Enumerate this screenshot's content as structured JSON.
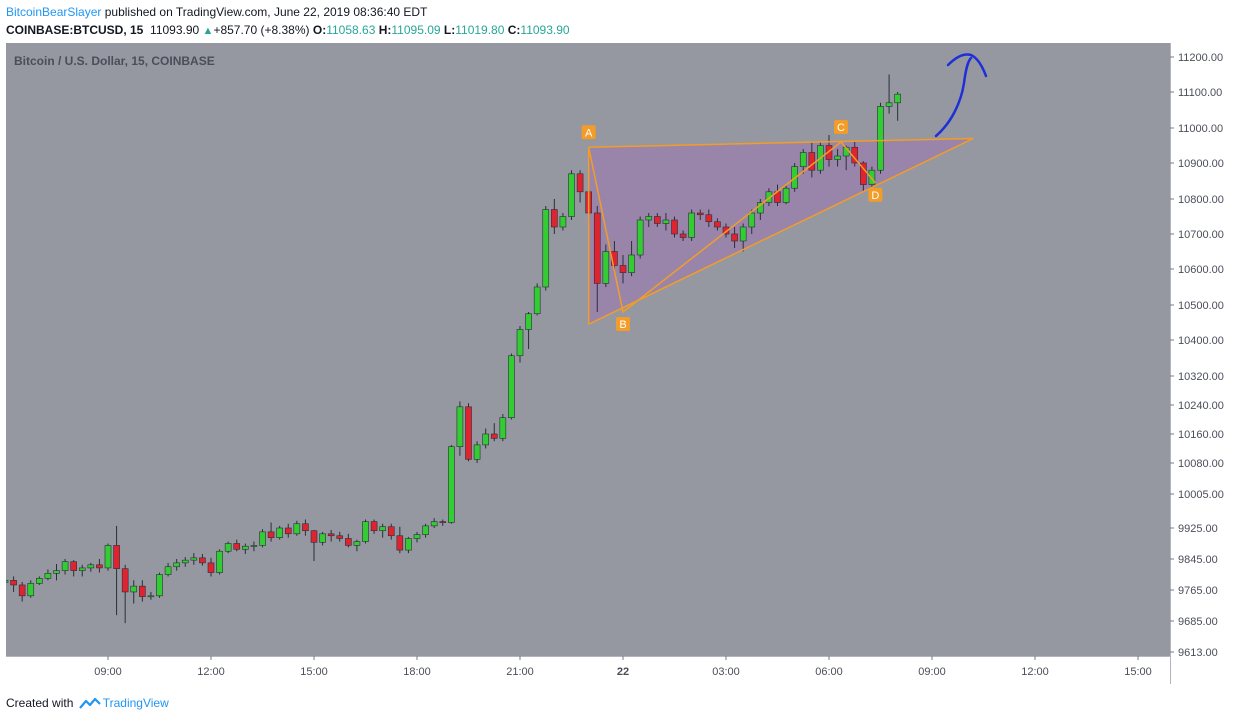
{
  "header": {
    "author": "BitcoinBearSlayer",
    "published_text": " published on TradingView.com, June 22, 2019 08:36:40 EDT",
    "symbol": "COINBASE:BTCUSD, 15",
    "last": "11093.90",
    "change": "+857.70 (+8.38%)",
    "o_label": "O:",
    "o": "11058.63",
    "h_label": "H:",
    "h": "11095.09",
    "l_label": "L:",
    "l": "11019.80",
    "c_label": "C:",
    "c": "11093.90"
  },
  "footer": {
    "created_with": "Created with",
    "brand": "TradingView"
  },
  "colors": {
    "background": "#9598a1",
    "up": "#33cc33",
    "down": "#e0242f",
    "wick": "#2a2e39",
    "pattern_line": "#f39c27",
    "pattern_fill": "#9c7fae",
    "arrow": "#1e2fd8",
    "label_bg": "#f39c27"
  },
  "chart_data": {
    "type": "candlestick",
    "title": "Bitcoin / U.S. Dollar, 15, COINBASE",
    "ylim": [
      9613,
      11260
    ],
    "y_ticks": [
      11200,
      11100,
      11000,
      10900,
      10800,
      10700,
      10600,
      10500,
      10400,
      10320,
      10240,
      10160,
      10080,
      10005,
      9925,
      9845,
      9765,
      9685,
      9613
    ],
    "y_tick_labels": [
      "11200.00",
      "11100.00",
      "11000.00",
      "10900.00",
      "10800.00",
      "10700.00",
      "10600.00",
      "10500.00",
      "10400.00",
      "10320.00",
      "10240.00",
      "10160.00",
      "10080.00",
      "10005.00",
      "9925.00",
      "9845.00",
      "9765.00",
      "9685.00",
      "9613.00"
    ],
    "x_ticks": [
      {
        "t": 9,
        "label": "09:00"
      },
      {
        "t": 12,
        "label": "12:00"
      },
      {
        "t": 15,
        "label": "15:00"
      },
      {
        "t": 18,
        "label": "18:00"
      },
      {
        "t": 21,
        "label": "21:00"
      },
      {
        "t": 24,
        "label": "22"
      },
      {
        "t": 27,
        "label": "03:00"
      },
      {
        "t": 30,
        "label": "06:00"
      },
      {
        "t": 33,
        "label": "09:00"
      },
      {
        "t": 36,
        "label": "12:00"
      },
      {
        "t": 39,
        "label": "15:00"
      }
    ],
    "x_range": [
      6.0,
      40.0
    ],
    "candles": [
      [
        6.0,
        9785,
        9795,
        9770,
        9790
      ],
      [
        6.25,
        9790,
        9800,
        9760,
        9778
      ],
      [
        6.5,
        9778,
        9786,
        9735,
        9750
      ],
      [
        6.75,
        9750,
        9790,
        9745,
        9782
      ],
      [
        7.0,
        9782,
        9800,
        9778,
        9795
      ],
      [
        7.25,
        9795,
        9818,
        9790,
        9808
      ],
      [
        7.5,
        9808,
        9832,
        9790,
        9815
      ],
      [
        7.75,
        9815,
        9845,
        9805,
        9838
      ],
      [
        8.0,
        9838,
        9842,
        9800,
        9815
      ],
      [
        8.25,
        9815,
        9830,
        9800,
        9822
      ],
      [
        8.5,
        9822,
        9835,
        9812,
        9830
      ],
      [
        8.75,
        9830,
        9845,
        9810,
        9822
      ],
      [
        9.0,
        9822,
        9885,
        9815,
        9880
      ],
      [
        9.25,
        9880,
        9930,
        9700,
        9820
      ],
      [
        9.5,
        9820,
        9830,
        9680,
        9760
      ],
      [
        9.75,
        9760,
        9790,
        9730,
        9775
      ],
      [
        10.0,
        9775,
        9790,
        9735,
        9748
      ],
      [
        10.25,
        9748,
        9760,
        9740,
        9750
      ],
      [
        10.5,
        9750,
        9810,
        9745,
        9805
      ],
      [
        10.75,
        9805,
        9835,
        9800,
        9825
      ],
      [
        11.0,
        9825,
        9845,
        9815,
        9835
      ],
      [
        11.25,
        9835,
        9850,
        9825,
        9842
      ],
      [
        11.5,
        9842,
        9860,
        9830,
        9848
      ],
      [
        11.75,
        9848,
        9858,
        9828,
        9835
      ],
      [
        12.0,
        9835,
        9848,
        9800,
        9810
      ],
      [
        12.25,
        9810,
        9870,
        9805,
        9865
      ],
      [
        12.5,
        9865,
        9890,
        9860,
        9885
      ],
      [
        12.75,
        9885,
        9895,
        9865,
        9870
      ],
      [
        13.0,
        9870,
        9885,
        9858,
        9878
      ],
      [
        13.25,
        9878,
        9890,
        9865,
        9880
      ],
      [
        13.5,
        9880,
        9922,
        9875,
        9915
      ],
      [
        13.75,
        9915,
        9938,
        9890,
        9900
      ],
      [
        14.0,
        9900,
        9930,
        9895,
        9925
      ],
      [
        14.25,
        9925,
        9935,
        9900,
        9910
      ],
      [
        14.5,
        9910,
        9942,
        9905,
        9935
      ],
      [
        14.75,
        9935,
        9945,
        9905,
        9918
      ],
      [
        15.0,
        9918,
        9920,
        9840,
        9888
      ],
      [
        15.25,
        9888,
        9915,
        9880,
        9910
      ],
      [
        15.5,
        9910,
        9920,
        9890,
        9905
      ],
      [
        15.75,
        9905,
        9915,
        9890,
        9898
      ],
      [
        16.0,
        9898,
        9910,
        9875,
        9880
      ],
      [
        16.25,
        9880,
        9895,
        9865,
        9890
      ],
      [
        16.5,
        9890,
        9945,
        9885,
        9940
      ],
      [
        16.75,
        9940,
        9945,
        9910,
        9918
      ],
      [
        17.0,
        9918,
        9935,
        9900,
        9928
      ],
      [
        17.25,
        9928,
        9935,
        9895,
        9905
      ],
      [
        17.5,
        9905,
        9928,
        9860,
        9868
      ],
      [
        17.75,
        9868,
        9902,
        9860,
        9898
      ],
      [
        18.0,
        9898,
        9915,
        9888,
        9908
      ],
      [
        18.25,
        9908,
        9935,
        9900,
        9930
      ],
      [
        18.5,
        9930,
        9948,
        9925,
        9940
      ],
      [
        18.75,
        9940,
        9945,
        9930,
        9938
      ],
      [
        19.0,
        9938,
        10130,
        9935,
        10125
      ],
      [
        19.25,
        10125,
        10250,
        10100,
        10235
      ],
      [
        19.5,
        10235,
        10245,
        10085,
        10090
      ],
      [
        19.75,
        10090,
        10140,
        10080,
        10130
      ],
      [
        20.0,
        10130,
        10175,
        10120,
        10160
      ],
      [
        20.25,
        10160,
        10190,
        10140,
        10148
      ],
      [
        20.5,
        10148,
        10215,
        10140,
        10205
      ],
      [
        20.75,
        10205,
        10370,
        10200,
        10365
      ],
      [
        21.0,
        10365,
        10440,
        10350,
        10430
      ],
      [
        21.25,
        10430,
        10480,
        10380,
        10475
      ],
      [
        21.5,
        10475,
        10560,
        10470,
        10550
      ],
      [
        21.75,
        10550,
        10780,
        10540,
        10770
      ],
      [
        22.0,
        10770,
        10800,
        10700,
        10720
      ],
      [
        22.25,
        10720,
        10760,
        10710,
        10750
      ],
      [
        22.5,
        10750,
        10880,
        10740,
        10870
      ],
      [
        22.75,
        10870,
        10880,
        10790,
        10820
      ],
      [
        23.0,
        10820,
        10830,
        10740,
        10760
      ],
      [
        23.25,
        10760,
        10780,
        10480,
        10560
      ],
      [
        23.5,
        10560,
        10670,
        10550,
        10650
      ],
      [
        23.75,
        10650,
        10680,
        10590,
        10610
      ],
      [
        24.0,
        10610,
        10640,
        10560,
        10590
      ],
      [
        24.25,
        10590,
        10680,
        10580,
        10640
      ],
      [
        24.5,
        10640,
        10750,
        10630,
        10740
      ],
      [
        24.75,
        10740,
        10760,
        10720,
        10750
      ],
      [
        25.0,
        10750,
        10760,
        10720,
        10730
      ],
      [
        25.25,
        10730,
        10760,
        10710,
        10740
      ],
      [
        25.5,
        10740,
        10750,
        10690,
        10700
      ],
      [
        25.75,
        10700,
        10710,
        10680,
        10690
      ],
      [
        26.0,
        10690,
        10770,
        10680,
        10760
      ],
      [
        26.25,
        10760,
        10770,
        10740,
        10755
      ],
      [
        26.5,
        10755,
        10770,
        10720,
        10735
      ],
      [
        26.75,
        10735,
        10745,
        10710,
        10720
      ],
      [
        27.0,
        10720,
        10730,
        10690,
        10700
      ],
      [
        27.25,
        10700,
        10720,
        10660,
        10680
      ],
      [
        27.5,
        10680,
        10730,
        10650,
        10720
      ],
      [
        27.75,
        10720,
        10770,
        10700,
        10760
      ],
      [
        28.0,
        10760,
        10800,
        10740,
        10790
      ],
      [
        28.25,
        10790,
        10830,
        10780,
        10820
      ],
      [
        28.5,
        10820,
        10840,
        10780,
        10790
      ],
      [
        28.75,
        10790,
        10840,
        10785,
        10830
      ],
      [
        29.0,
        10830,
        10900,
        10820,
        10890
      ],
      [
        29.25,
        10890,
        10940,
        10870,
        10930
      ],
      [
        29.5,
        10930,
        10960,
        10860,
        10880
      ],
      [
        29.75,
        10880,
        10960,
        10870,
        10950
      ],
      [
        30.0,
        10950,
        10980,
        10890,
        10910
      ],
      [
        30.25,
        10910,
        10940,
        10890,
        10920
      ],
      [
        30.5,
        10920,
        10950,
        10880,
        10945
      ],
      [
        30.75,
        10945,
        10960,
        10890,
        10900
      ],
      [
        31.0,
        10900,
        10905,
        10820,
        10840
      ],
      [
        31.25,
        10840,
        10890,
        10830,
        10880
      ],
      [
        31.5,
        10880,
        11070,
        10870,
        11060
      ],
      [
        31.75,
        11060,
        11150,
        11040,
        11070
      ],
      [
        32.0,
        11070,
        11100,
        11020,
        11094
      ]
    ],
    "pattern": {
      "name": "ABCD",
      "points": [
        {
          "label": "A",
          "t": 23.0,
          "price": 10945
        },
        {
          "label": "B",
          "t": 24.0,
          "price": 10480
        },
        {
          "label": "C",
          "t": 30.35,
          "price": 10960
        },
        {
          "label": "D",
          "t": 31.35,
          "price": 10845
        }
      ],
      "channel_top": [
        {
          "t": 23.0,
          "price": 10945
        },
        {
          "t": 34.2,
          "price": 10970
        }
      ],
      "channel_bottom": [
        {
          "t": 23.0,
          "price": 10445
        },
        {
          "t": 34.2,
          "price": 10970
        }
      ]
    }
  }
}
